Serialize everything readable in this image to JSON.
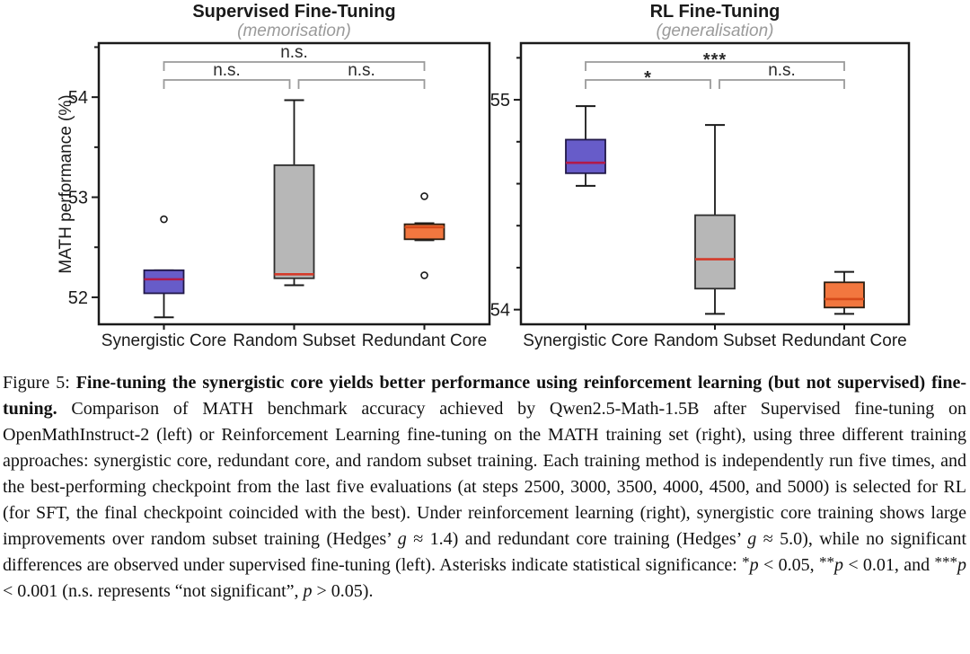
{
  "colors": {
    "frame": "#1a1a1a",
    "bracket": "#9a9a9a",
    "subtitle": "#9a9a9a",
    "outlier_fill": "#ffffff"
  },
  "chart_data": [
    {
      "type": "boxplot",
      "title": "Supervised Fine-Tuning",
      "subtitle": "(memorisation)",
      "ylabel": "MATH performance (%)",
      "categories": [
        "Synergistic Core",
        "Random Subset",
        "Redundant Core"
      ],
      "ylim": [
        51.73,
        54.54
      ],
      "yticks_major": [
        52,
        53,
        54
      ],
      "yticks_minor": [
        52.5,
        53.5,
        54.5
      ],
      "grid": false,
      "boxes": [
        {
          "category": "Synergistic Core",
          "whisker_low": 51.8,
          "q1": 52.04,
          "median": 52.18,
          "q3": 52.27,
          "whisker_high": 52.27,
          "outliers": [
            52.78
          ],
          "fill": "#675cc9",
          "stroke": "#201748",
          "median_color": "#b11a4a"
        },
        {
          "category": "Random Subset",
          "whisker_low": 52.12,
          "q1": 52.19,
          "median": 52.23,
          "q3": 53.32,
          "whisker_high": 53.97,
          "outliers": [],
          "fill": "#b7b7b7",
          "stroke": "#2e2e2e",
          "median_color": "#d43a2a"
        },
        {
          "category": "Redundant Core",
          "whisker_low": 52.57,
          "q1": 52.58,
          "median": 52.7,
          "q3": 52.73,
          "whisker_high": 52.74,
          "outliers": [
            53.01,
            52.22
          ],
          "fill": "#f2773f",
          "stroke": "#2b1d10",
          "median_color": "#d64a1a"
        }
      ],
      "significance": [
        {
          "from": 0,
          "to": 2,
          "label": "n.s.",
          "level": 2
        },
        {
          "from": 0,
          "to": 1,
          "label": "n.s.",
          "level": 1
        },
        {
          "from": 1,
          "to": 2,
          "label": "n.s.",
          "level": 1
        }
      ]
    },
    {
      "type": "boxplot",
      "title": "RL Fine-Tuning",
      "subtitle": "(generalisation)",
      "ylabel": "",
      "categories": [
        "Synergistic Core",
        "Random Subset",
        "Redundant Core"
      ],
      "ylim": [
        53.93,
        55.27
      ],
      "yticks_major": [
        54,
        55
      ],
      "yticks_minor": [
        54.2,
        54.4,
        54.6,
        54.8,
        55.2
      ],
      "grid": false,
      "boxes": [
        {
          "category": "Synergistic Core",
          "whisker_low": 54.59,
          "q1": 54.65,
          "median": 54.7,
          "q3": 54.81,
          "whisker_high": 54.97,
          "outliers": [],
          "fill": "#675cc9",
          "stroke": "#201748",
          "median_color": "#b11a4a"
        },
        {
          "category": "Random Subset",
          "whisker_low": 53.98,
          "q1": 54.1,
          "median": 54.24,
          "q3": 54.45,
          "whisker_high": 54.88,
          "outliers": [],
          "fill": "#b7b7b7",
          "stroke": "#2e2e2e",
          "median_color": "#d43a2a"
        },
        {
          "category": "Redundant Core",
          "whisker_low": 53.98,
          "q1": 54.01,
          "median": 54.05,
          "q3": 54.13,
          "whisker_high": 54.18,
          "outliers": [],
          "fill": "#f2773f",
          "stroke": "#2b1d10",
          "median_color": "#d64a1a"
        }
      ],
      "significance": [
        {
          "from": 0,
          "to": 2,
          "label": "***",
          "level": 2
        },
        {
          "from": 0,
          "to": 1,
          "label": "*",
          "level": 1
        },
        {
          "from": 1,
          "to": 2,
          "label": "n.s.",
          "level": 1
        }
      ]
    }
  ],
  "caption": {
    "segments": [
      {
        "style": "label",
        "text": "Figure 5: "
      },
      {
        "style": "bold",
        "text": "Fine-tuning the synergistic core yields better performance using reinforcement learning (but not supervised) fine-tuning."
      },
      {
        "style": "normal",
        "text": " Comparison of MATH benchmark accuracy achieved by Qwen2.5-Math-1.5B after Supervised fine-tuning on OpenMathInstruct-2 (left) or Reinforcement Learning fine-tuning on the MATH training set (right), using three different training approaches: synergistic core, redundant core, and random subset training. Each training method is independently run five times, and the best-performing checkpoint from the last five evaluations (at steps 2500, 3000, 3500, 4000, 4500, and 5000) is selected for RL (for SFT, the final checkpoint coincided with the best). Under reinforcement learning (right), synergistic core training shows large improvements over random subset training (Hedges’ "
      },
      {
        "style": "italic",
        "text": "g"
      },
      {
        "style": "normal",
        "text": " ≈ 1.4) and redundant core training (Hedges’ "
      },
      {
        "style": "italic",
        "text": "g"
      },
      {
        "style": "normal",
        "text": " ≈ 5.0), while no significant differences are observed under supervised fine-tuning (left). Asterisks indicate statistical significance: "
      },
      {
        "style": "sup",
        "text": "*"
      },
      {
        "style": "italic",
        "text": "p"
      },
      {
        "style": "normal",
        "text": " < 0.05, "
      },
      {
        "style": "sup",
        "text": "**"
      },
      {
        "style": "italic",
        "text": "p"
      },
      {
        "style": "normal",
        "text": " < 0.01, and "
      },
      {
        "style": "sup",
        "text": "***"
      },
      {
        "style": "italic",
        "text": "p"
      },
      {
        "style": "normal",
        "text": " < 0.001 (n.s. represents “not significant”, "
      },
      {
        "style": "italic",
        "text": "p"
      },
      {
        "style": "normal",
        "text": " > 0.05)."
      }
    ]
  }
}
